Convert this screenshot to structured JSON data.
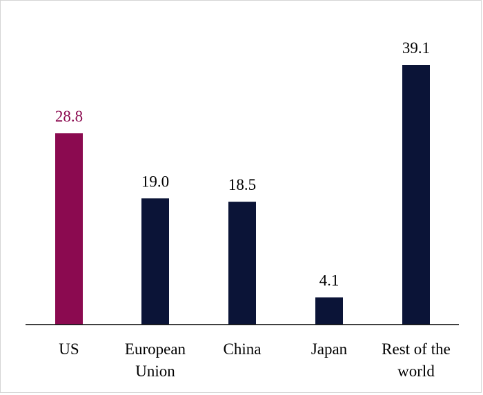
{
  "chart_data": {
    "type": "bar",
    "title": "",
    "xlabel": "",
    "ylabel": "",
    "categories": [
      [
        "US"
      ],
      [
        "European",
        "Union"
      ],
      [
        "China"
      ],
      [
        "Japan"
      ],
      [
        "Rest of the",
        "world"
      ]
    ],
    "values": [
      28.8,
      19.0,
      18.5,
      4.1,
      39.1
    ],
    "value_labels": [
      "28.8",
      "19.0",
      "18.5",
      "4.1",
      "39.1"
    ],
    "colors": [
      "#8b0a50",
      "#0b1437",
      "#0b1437",
      "#0b1437",
      "#0b1437"
    ],
    "label_colors": [
      "#8b0a50",
      "#000000",
      "#000000",
      "#000000",
      "#000000"
    ],
    "ylim": [
      0,
      40
    ],
    "grid": false,
    "legend": "none"
  }
}
